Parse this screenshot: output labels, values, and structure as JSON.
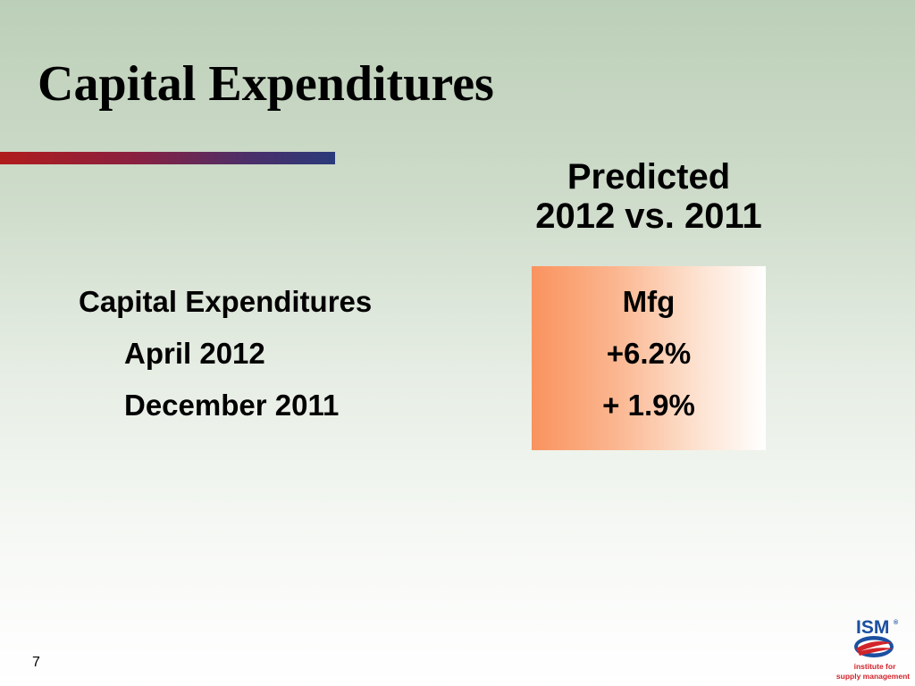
{
  "slide": {
    "title": "Capital Expenditures",
    "page_number": "7"
  },
  "header": {
    "line1": "Predicted",
    "line2": "2012 vs. 2011"
  },
  "rows": {
    "heading": "Capital Expenditures",
    "april": "April 2012",
    "december": "December 2011"
  },
  "values": {
    "column_label": "Mfg",
    "april": "+6.2%",
    "december": "+ 1.9%"
  },
  "logo": {
    "mark": "ISM",
    "registered": "®",
    "line1": "institute for",
    "line2": "supply management"
  },
  "colors": {
    "rule_start": "#b01c1c",
    "rule_end": "#2a3a7a",
    "box_start": "#f9935e",
    "logo_blue": "#1b4fa0",
    "logo_red": "#d2232a"
  }
}
